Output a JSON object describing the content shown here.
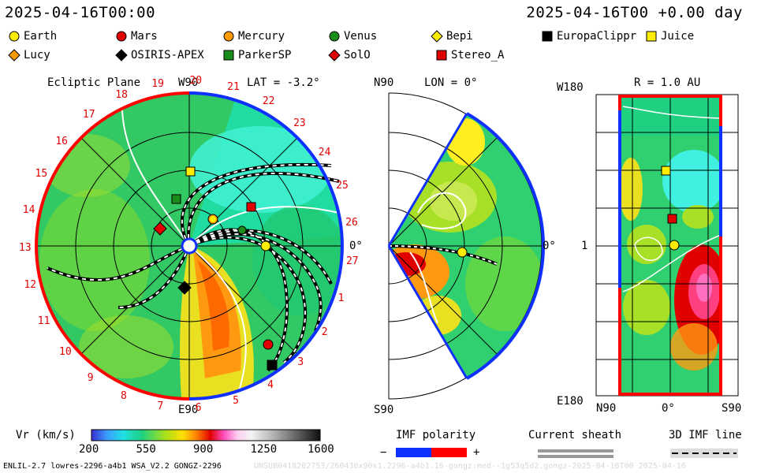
{
  "header": {
    "date_left": "2025-04-16T00:00",
    "date_right": "2025-04-16T00 +0.00 day"
  },
  "legend": [
    {
      "name": "Earth",
      "shape": "circle",
      "color": "#ffee00"
    },
    {
      "name": "Mars",
      "shape": "circle",
      "color": "#e00000"
    },
    {
      "name": "Mercury",
      "shape": "circle",
      "color": "#ff9900"
    },
    {
      "name": "Venus",
      "shape": "circle",
      "color": "#1a8c1a"
    },
    {
      "name": "Bepi",
      "shape": "diamond",
      "color": "#ffee00"
    },
    {
      "name": "EuropaClippr",
      "shape": "square",
      "color": "#000000"
    },
    {
      "name": "Juice",
      "shape": "square",
      "color": "#ffee00"
    },
    {
      "name": "Lucy",
      "shape": "diamond",
      "color": "#ff9900"
    },
    {
      "name": "OSIRIS-APEX",
      "shape": "diamond",
      "color": "#000000"
    },
    {
      "name": "ParkerSP",
      "shape": "square",
      "color": "#1a8c1a"
    },
    {
      "name": "SolO",
      "shape": "diamond",
      "color": "#e00000"
    },
    {
      "name": "Stereo_A",
      "shape": "square",
      "color": "#e00000"
    }
  ],
  "ecliptic": {
    "title": "Ecliptic Plane",
    "lat_label": "LAT = -3.2°",
    "w90": "W90",
    "e90": "E90",
    "zero": "0°",
    "rotations": [
      "19",
      "20",
      "21",
      "22",
      "23",
      "24",
      "25",
      "26",
      "27",
      "1",
      "2",
      "3",
      "4",
      "5",
      "6",
      "7",
      "8",
      "9",
      "10",
      "11",
      "12",
      "13",
      "14",
      "15",
      "16",
      "17",
      "18"
    ]
  },
  "meridional": {
    "n90": "N90",
    "s90": "S90",
    "lon_label": "LON = 0°",
    "zero": "0°"
  },
  "map": {
    "r_label": "R = 1.0 AU",
    "w180": "W180",
    "e180": "E180",
    "one": "1",
    "n90": "N90",
    "zero": "0°",
    "s90": "S90"
  },
  "colorbar": {
    "label": "Vr (km/s)",
    "ticks": [
      "200",
      "550",
      "900",
      "1250",
      "1600"
    ]
  },
  "imf": {
    "label": "IMF polarity",
    "minus": "−",
    "plus": "+"
  },
  "sheath": {
    "label": "Current sheath"
  },
  "imfline": {
    "label": "3D IMF line"
  },
  "footer": {
    "left": "ENLIL-2.7 lowres-2296-a4b1 WSA_V2.2 GONGZ-2296",
    "right": "UNSUB0418202753/260430x90x1.2296-a4b1.16-gongz:med--1g53q5d2.gongz-2025-04-16T00    2025-04-16"
  },
  "colors": {
    "positive": "#ff0000",
    "negative": "#0020ff",
    "rotation_text": "#e00000"
  }
}
